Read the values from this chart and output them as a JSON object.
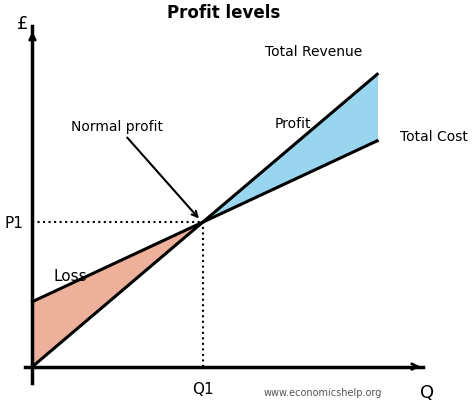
{
  "title": "Profit levels",
  "xlabel": "Q",
  "ylabel": "£",
  "background_color": "#ffffff",
  "line_color": "#000000",
  "line_width": 2.2,
  "loss_color": "#E8967A",
  "loss_alpha": 0.75,
  "profit_color": "#87CEEB",
  "profit_alpha": 0.85,
  "p1_label": "P1",
  "q1_label": "Q1",
  "normal_profit_label": "Normal profit",
  "loss_label": "Loss",
  "profit_label": "Profit",
  "total_revenue_label": "Total Revenue",
  "total_cost_label": "Total Cost",
  "website_label": "www.economicshelp.org",
  "tr_slope": 1.0,
  "tr_intercept": 0.0,
  "tc_slope": 0.55,
  "tc_intercept": 2.0,
  "x_end": 9.0,
  "xlim": [
    -0.2,
    10.2
  ],
  "ylim": [
    -0.5,
    10.5
  ]
}
